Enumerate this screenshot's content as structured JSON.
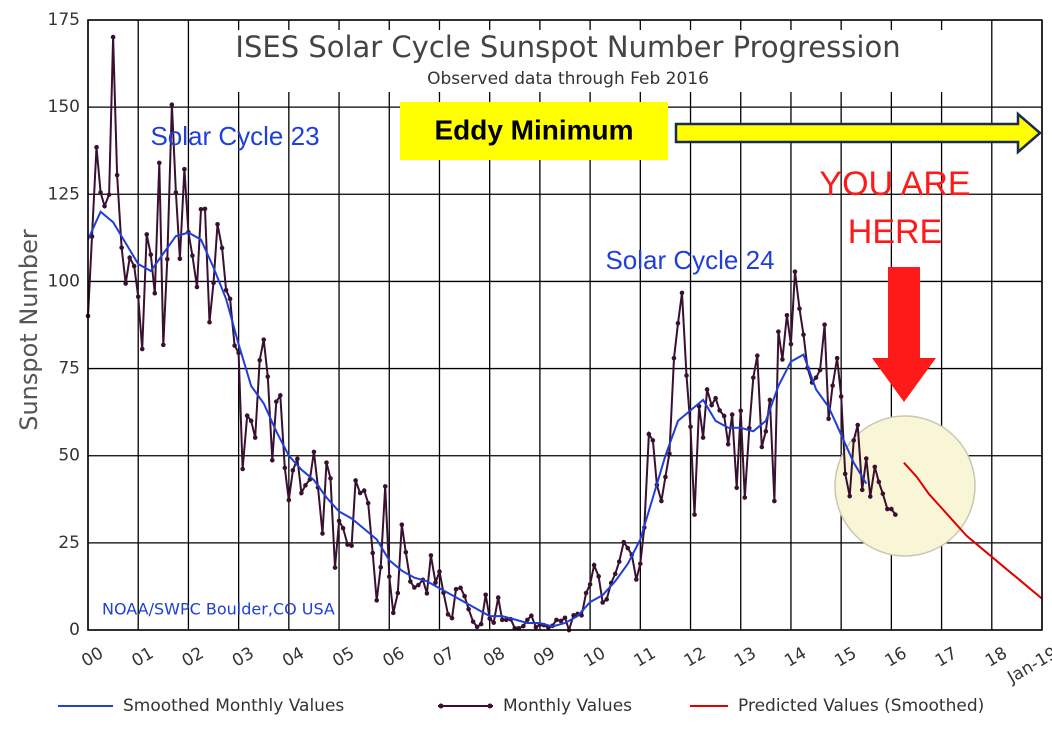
{
  "chart_data": {
    "type": "line",
    "title": "ISES Solar Cycle Sunspot Number Progression",
    "subtitle": "Observed data through Feb 2016",
    "y_label": "Sunspot Number",
    "source": "NOAA/SWPC Boulder,CO USA",
    "annotations": {
      "cycle23": "Solar Cycle 23",
      "cycle24": "Solar Cycle 24",
      "eddy": "Eddy Minimum",
      "here": [
        "YOU ARE",
        "HERE"
      ]
    },
    "xlim": [
      2000,
      2019
    ],
    "ylim": [
      0,
      175
    ],
    "grid": true,
    "xticks": [
      {
        "value": 2000,
        "label": "00"
      },
      {
        "value": 2001,
        "label": "01"
      },
      {
        "value": 2002,
        "label": "02"
      },
      {
        "value": 2003,
        "label": "03"
      },
      {
        "value": 2004,
        "label": "04"
      },
      {
        "value": 2005,
        "label": "05"
      },
      {
        "value": 2006,
        "label": "06"
      },
      {
        "value": 2007,
        "label": "07"
      },
      {
        "value": 2008,
        "label": "08"
      },
      {
        "value": 2009,
        "label": "09"
      },
      {
        "value": 2010,
        "label": "10"
      },
      {
        "value": 2011,
        "label": "11"
      },
      {
        "value": 2012,
        "label": "12"
      },
      {
        "value": 2013,
        "label": "13"
      },
      {
        "value": 2014,
        "label": "14"
      },
      {
        "value": 2015,
        "label": "15"
      },
      {
        "value": 2016,
        "label": "16"
      },
      {
        "value": 2017,
        "label": "17"
      },
      {
        "value": 2018,
        "label": "18"
      },
      {
        "value": 2019,
        "label": "Jan-19"
      }
    ],
    "yticks": [
      0,
      25,
      50,
      75,
      100,
      125,
      150,
      175
    ],
    "series": [
      {
        "name": "Smoothed Monthly Values",
        "color": "#1f3fd8",
        "markers": false,
        "x": [
          2000,
          2000.25,
          2000.5,
          2000.75,
          2001,
          2001.25,
          2001.5,
          2001.75,
          2002,
          2002.25,
          2002.5,
          2002.75,
          2003,
          2003.25,
          2003.5,
          2003.75,
          2004,
          2004.25,
          2004.5,
          2004.75,
          2005,
          2005.25,
          2005.5,
          2005.75,
          2006,
          2006.25,
          2006.5,
          2006.75,
          2007,
          2007.25,
          2007.5,
          2007.75,
          2008,
          2008.25,
          2008.5,
          2008.75,
          2009,
          2009.25,
          2009.5,
          2009.75,
          2010,
          2010.25,
          2010.5,
          2010.75,
          2011,
          2011.25,
          2011.5,
          2011.75,
          2012,
          2012.25,
          2012.5,
          2012.75,
          2013,
          2013.25,
          2013.5,
          2013.75,
          2014,
          2014.25,
          2014.5,
          2014.75,
          2015,
          2015.25,
          2015.5
        ],
        "values": [
          112,
          120,
          117,
          111,
          105,
          103,
          108,
          113,
          114,
          112,
          104,
          95,
          82,
          70,
          65,
          57,
          50,
          46,
          43,
          38,
          34,
          32,
          29,
          26,
          20,
          17,
          15,
          14,
          12,
          10,
          8,
          6,
          4,
          4,
          3,
          2,
          2,
          1,
          2,
          4,
          8,
          10,
          14,
          19,
          26,
          38,
          50,
          60,
          63,
          66,
          60,
          58,
          58,
          57,
          60,
          70,
          77,
          79,
          69,
          64,
          56,
          48,
          42
        ]
      },
      {
        "name": "Monthly Values",
        "color": "#3a1030",
        "markers": true,
        "x": [
          2000,
          2000.08,
          2000.17,
          2000.25,
          2000.33,
          2000.42,
          2000.5,
          2000.58,
          2000.67,
          2000.75,
          2000.83,
          2000.92,
          2001,
          2001.08,
          2001.17,
          2001.25,
          2001.33,
          2001.42,
          2001.5,
          2001.58,
          2001.67,
          2001.75,
          2001.83,
          2001.92,
          2002,
          2002.08,
          2002.17,
          2002.25,
          2002.33,
          2002.42,
          2002.5,
          2002.58,
          2002.67,
          2002.75,
          2002.83,
          2002.92,
          2003,
          2003.08,
          2003.17,
          2003.25,
          2003.33,
          2003.42,
          2003.5,
          2003.58,
          2003.67,
          2003.75,
          2003.83,
          2003.92,
          2004,
          2004.08,
          2004.17,
          2004.25,
          2004.33,
          2004.42,
          2004.5,
          2004.58,
          2004.67,
          2004.75,
          2004.83,
          2004.92,
          2005,
          2005.08,
          2005.17,
          2005.25,
          2005.33,
          2005.42,
          2005.5,
          2005.58,
          2005.67,
          2005.75,
          2005.83,
          2005.92,
          2006,
          2006.08,
          2006.17,
          2006.25,
          2006.33,
          2006.42,
          2006.5,
          2006.58,
          2006.67,
          2006.75,
          2006.83,
          2006.92,
          2007,
          2007.08,
          2007.17,
          2007.25,
          2007.33,
          2007.42,
          2007.5,
          2007.58,
          2007.67,
          2007.75,
          2007.83,
          2007.92,
          2008,
          2008.08,
          2008.17,
          2008.25,
          2008.33,
          2008.42,
          2008.5,
          2008.58,
          2008.67,
          2008.75,
          2008.83,
          2008.92,
          2009,
          2009.08,
          2009.17,
          2009.25,
          2009.33,
          2009.42,
          2009.5,
          2009.58,
          2009.67,
          2009.75,
          2009.83,
          2009.92,
          2010,
          2010.08,
          2010.17,
          2010.25,
          2010.33,
          2010.42,
          2010.5,
          2010.58,
          2010.67,
          2010.75,
          2010.83,
          2010.92,
          2011,
          2011.08,
          2011.17,
          2011.25,
          2011.33,
          2011.42,
          2011.5,
          2011.58,
          2011.67,
          2011.75,
          2011.83,
          2011.92,
          2012,
          2012.08,
          2012.17,
          2012.25,
          2012.33,
          2012.42,
          2012.5,
          2012.58,
          2012.67,
          2012.75,
          2012.83,
          2012.92,
          2013,
          2013.08,
          2013.17,
          2013.25,
          2013.33,
          2013.42,
          2013.5,
          2013.58,
          2013.67,
          2013.75,
          2013.83,
          2013.92,
          2014,
          2014.08,
          2014.17,
          2014.25,
          2014.33,
          2014.42,
          2014.5,
          2014.58,
          2014.67,
          2014.75,
          2014.83,
          2014.92,
          2015,
          2015.08,
          2015.17,
          2015.25,
          2015.33,
          2015.42,
          2015.5,
          2015.58,
          2015.67,
          2015.75,
          2015.83,
          2015.92,
          2016,
          2016.08
        ],
        "values": [
          90.1,
          112.9,
          138.5,
          125.5,
          121.6,
          124.9,
          170.1,
          130.5,
          109.7,
          99.4,
          106.8,
          104.4,
          95.6,
          80.6,
          113.5,
          107.7,
          96.6,
          134,
          81.8,
          106.4,
          150.7,
          125.5,
          106.5,
          132.2,
          114.1,
          107.4,
          98.4,
          120.7,
          120.8,
          88.3,
          99.6,
          116.4,
          109.6,
          97.5,
          95,
          81.6,
          79.5,
          46.2,
          61.5,
          60,
          55.2,
          77.4,
          83.3,
          72.7,
          48.7,
          65.5,
          67.3,
          46.5,
          37.3,
          45.8,
          49.1,
          39.3,
          41.5,
          43.2,
          51.1,
          40.9,
          27.7,
          48,
          43.5,
          17.9,
          31.3,
          29.2,
          24.5,
          24.2,
          42.9,
          39.3,
          40,
          36.4,
          22.1,
          8.5,
          18,
          41.2,
          15.3,
          4.9,
          10.6,
          30.2,
          22.3,
          13.9,
          12.2,
          12.9,
          14.4,
          10.5,
          21.4,
          13.6,
          16.8,
          10.7,
          4.5,
          3.4,
          11.7,
          12.1,
          9.7,
          6,
          2.4,
          0.9,
          1.7,
          10.1,
          3.3,
          2.1,
          9.3,
          2.9,
          2.9,
          3.1,
          0.5,
          0.5,
          1.1,
          2.9,
          4.1,
          0.8,
          1.5,
          1.4,
          0.7,
          1.2,
          2.9,
          2.6,
          3.5,
          0,
          4.2,
          4.6,
          4.2,
          10.6,
          13.1,
          18.6,
          15.4,
          7.9,
          8.8,
          13.5,
          16.1,
          19.6,
          25.2,
          23.5,
          21.6,
          14.5,
          19,
          29.4,
          56.2,
          54.4,
          41.6,
          37,
          43.9,
          50.6,
          78,
          88,
          96.7,
          73,
          58.3,
          33.1,
          64.2,
          55.2,
          69,
          64.5,
          66.5,
          63,
          61.4,
          53.3,
          61.8,
          40.8,
          62.9,
          38,
          57.9,
          72.4,
          78.7,
          52.5,
          57,
          66,
          37,
          85.6,
          77.6,
          90.3,
          82,
          102.8,
          92.2,
          84.7,
          75.2,
          71,
          72.4,
          74.6,
          87.6,
          60.6,
          70.1,
          78,
          67,
          44.8,
          38.4,
          54.4,
          58.8,
          40.2,
          49.2,
          38.3,
          46.8,
          42.5,
          39.1,
          34.7,
          34.7,
          33.1
        ]
      },
      {
        "name": "Predicted Values (Smoothed)",
        "color": "#e00000",
        "markers": false,
        "x": [
          2016.25,
          2016.5,
          2016.75,
          2017,
          2017.25,
          2017.5,
          2017.75,
          2018,
          2018.25,
          2018.5,
          2018.75,
          2019
        ],
        "values": [
          48,
          44,
          39,
          35,
          31,
          27,
          24,
          21,
          18,
          15,
          12,
          9
        ]
      }
    ]
  }
}
